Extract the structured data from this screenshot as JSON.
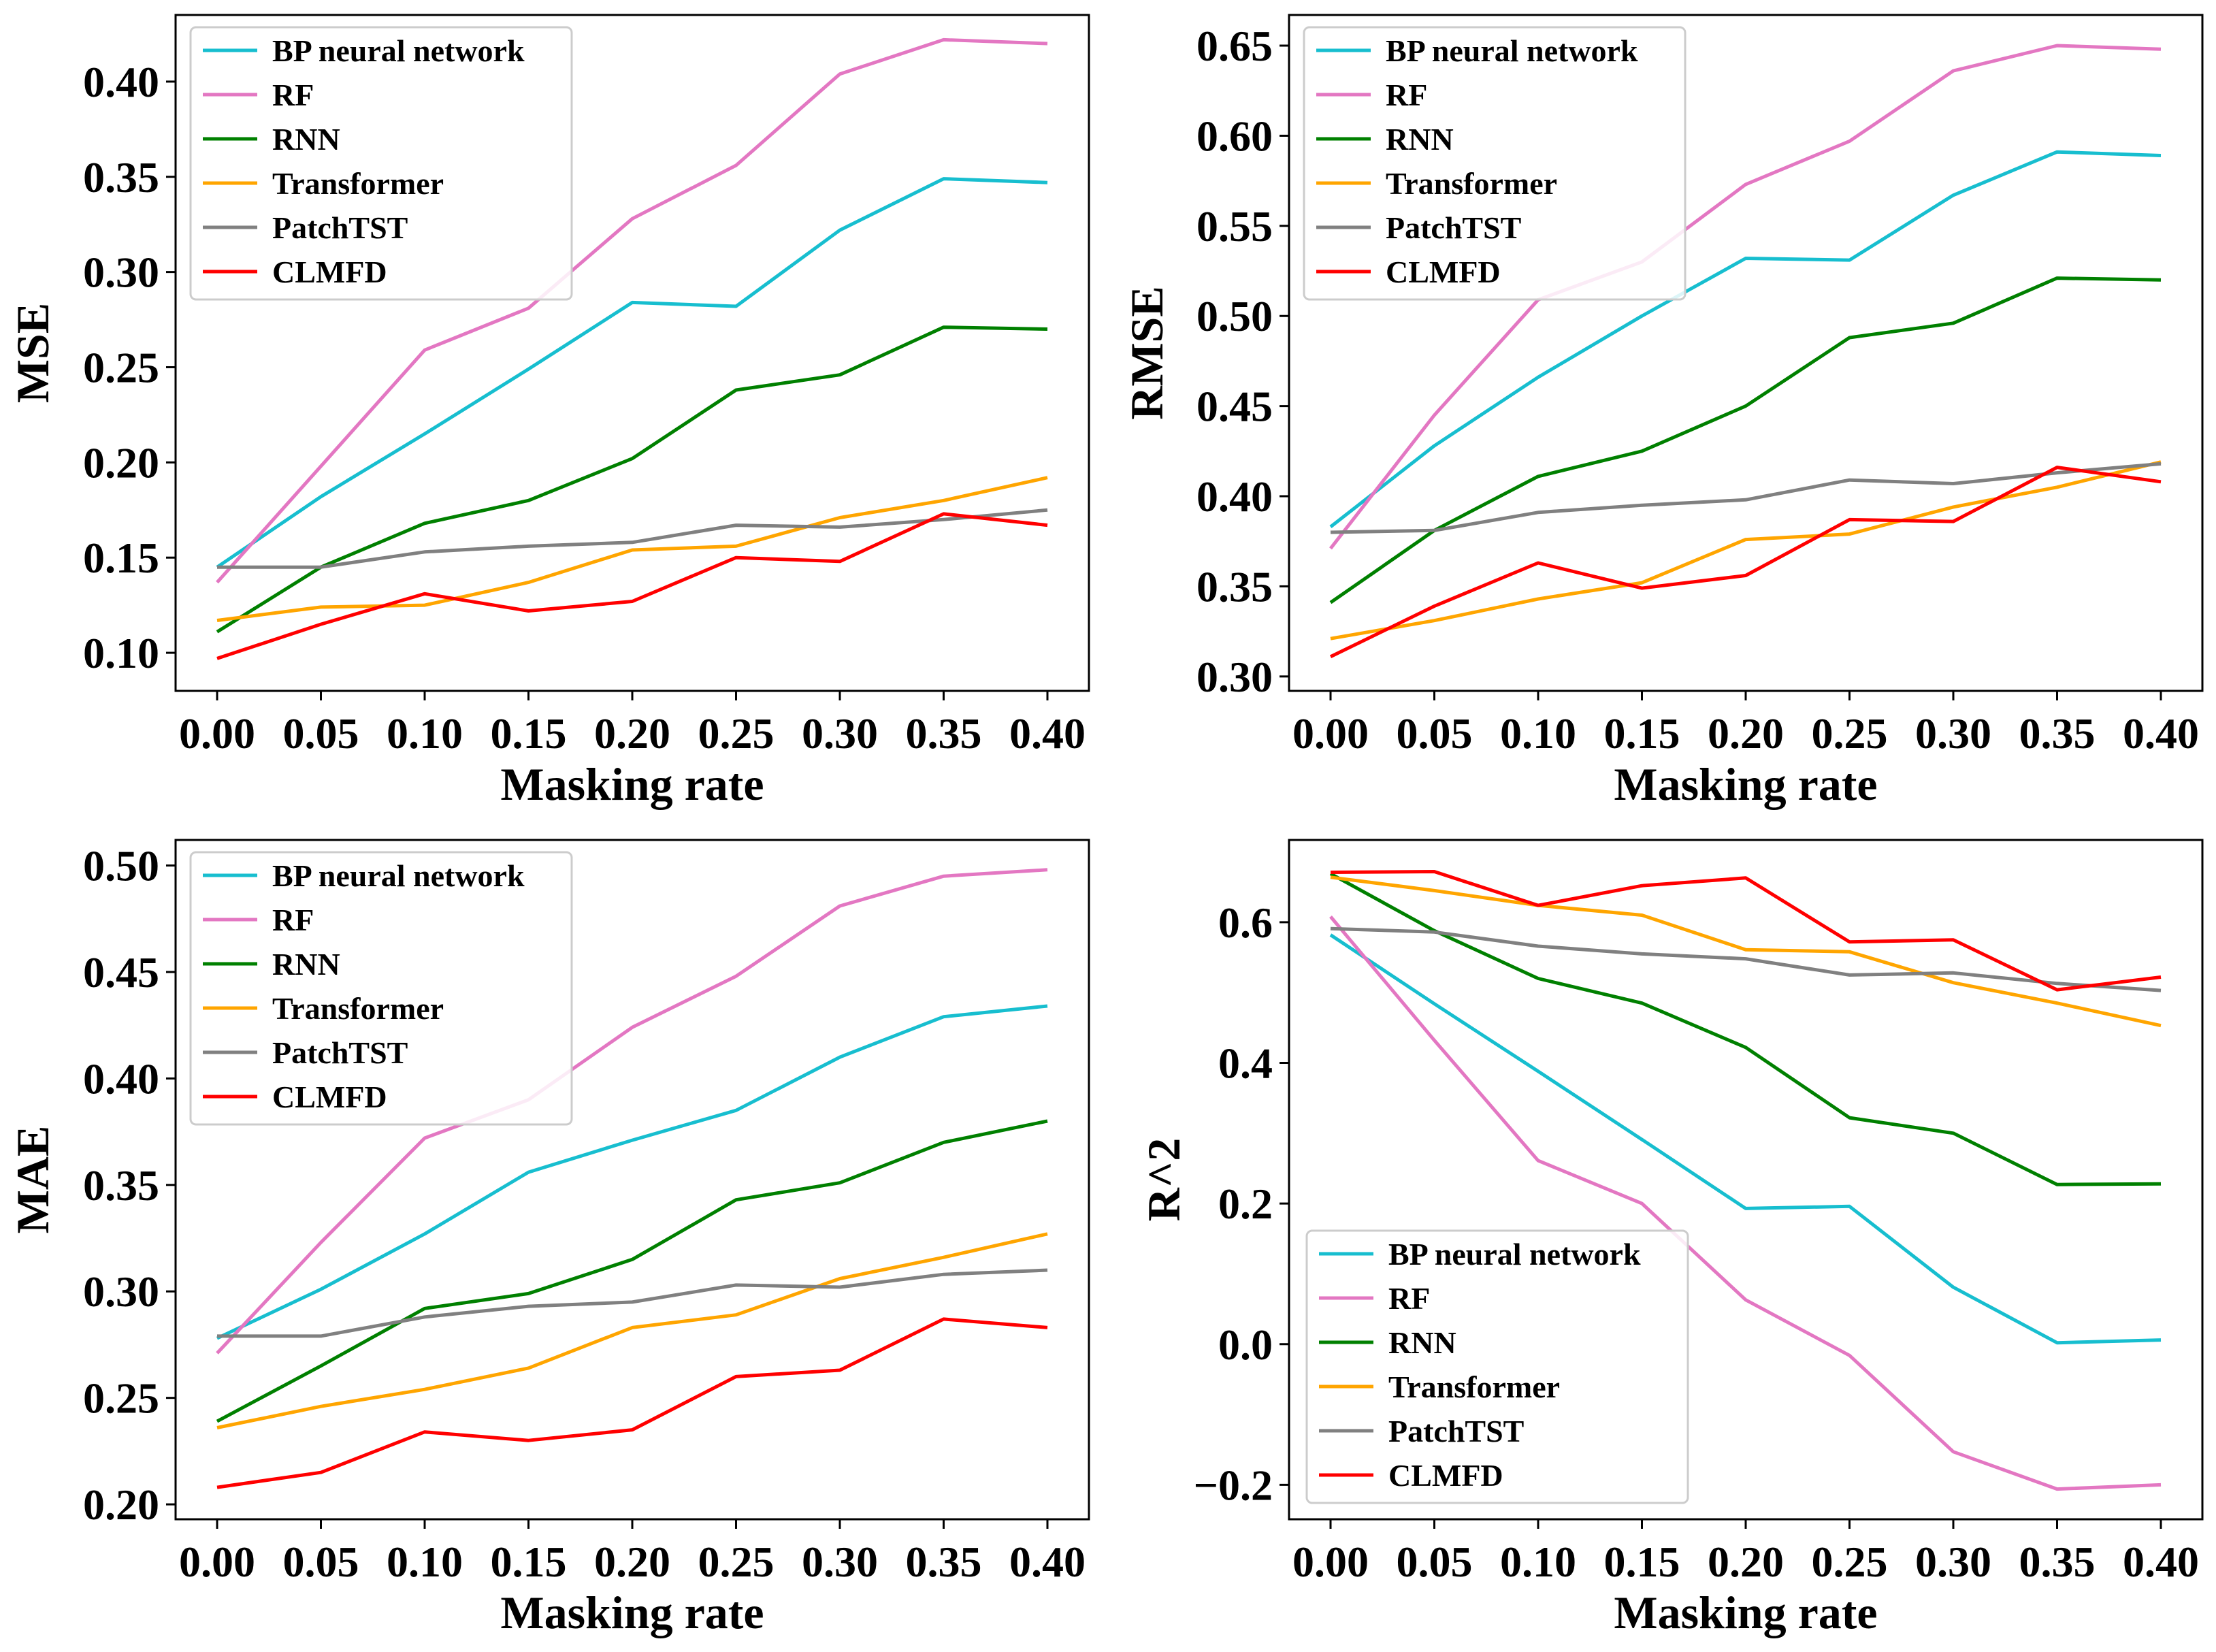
{
  "chart_data": [
    {
      "type": "line",
      "xlabel": "Masking rate",
      "ylabel": "MSE",
      "x": [
        0.0,
        0.05,
        0.1,
        0.15,
        0.2,
        0.25,
        0.3,
        0.35,
        0.4
      ],
      "x_ticks": [
        "0.00",
        "0.05",
        "0.10",
        "0.15",
        "0.20",
        "0.25",
        "0.30",
        "0.35",
        "0.40"
      ],
      "xlim": [
        -0.02,
        0.42
      ],
      "ylim": [
        0.08,
        0.435
      ],
      "y_ticks": [
        "0.10",
        "0.15",
        "0.20",
        "0.25",
        "0.30",
        "0.35",
        "0.40"
      ],
      "legend_position": "top-left",
      "series": [
        {
          "name": "BP neural network",
          "color": "#17becf",
          "values": [
            0.145,
            0.182,
            0.215,
            0.249,
            0.284,
            0.282,
            0.322,
            0.349,
            0.347
          ]
        },
        {
          "name": "RF",
          "color": "#e377c2",
          "values": [
            0.137,
            0.198,
            0.259,
            0.281,
            0.328,
            0.356,
            0.404,
            0.422,
            0.42
          ]
        },
        {
          "name": "RNN",
          "color": "#008000",
          "values": [
            0.111,
            0.145,
            0.168,
            0.18,
            0.202,
            0.238,
            0.246,
            0.271,
            0.27
          ]
        },
        {
          "name": "Transformer",
          "color": "#ffa500",
          "values": [
            0.117,
            0.124,
            0.125,
            0.137,
            0.154,
            0.156,
            0.171,
            0.18,
            0.192
          ]
        },
        {
          "name": "PatchTST",
          "color": "#808080",
          "values": [
            0.145,
            0.145,
            0.153,
            0.156,
            0.158,
            0.167,
            0.166,
            0.17,
            0.175
          ]
        },
        {
          "name": "CLMFD",
          "color": "#ff0000",
          "values": [
            0.097,
            0.115,
            0.131,
            0.122,
            0.127,
            0.15,
            0.148,
            0.173,
            0.167
          ]
        }
      ]
    },
    {
      "type": "line",
      "xlabel": "Masking rate",
      "ylabel": "RMSE",
      "x": [
        0.0,
        0.05,
        0.1,
        0.15,
        0.2,
        0.25,
        0.3,
        0.35,
        0.4
      ],
      "x_ticks": [
        "0.00",
        "0.05",
        "0.10",
        "0.15",
        "0.20",
        "0.25",
        "0.30",
        "0.35",
        "0.40"
      ],
      "xlim": [
        -0.02,
        0.42
      ],
      "ylim": [
        0.292,
        0.667
      ],
      "y_ticks": [
        "0.30",
        "0.35",
        "0.40",
        "0.45",
        "0.50",
        "0.55",
        "0.60",
        "0.65"
      ],
      "legend_position": "top-left",
      "series": [
        {
          "name": "BP neural network",
          "color": "#17becf",
          "values": [
            0.383,
            0.428,
            0.466,
            0.5,
            0.532,
            0.531,
            0.567,
            0.591,
            0.589
          ]
        },
        {
          "name": "RF",
          "color": "#e377c2",
          "values": [
            0.371,
            0.445,
            0.509,
            0.53,
            0.573,
            0.597,
            0.636,
            0.65,
            0.648
          ]
        },
        {
          "name": "RNN",
          "color": "#008000",
          "values": [
            0.341,
            0.381,
            0.411,
            0.425,
            0.45,
            0.488,
            0.496,
            0.521,
            0.52
          ]
        },
        {
          "name": "Transformer",
          "color": "#ffa500",
          "values": [
            0.321,
            0.331,
            0.343,
            0.352,
            0.376,
            0.379,
            0.394,
            0.405,
            0.419
          ]
        },
        {
          "name": "PatchTST",
          "color": "#808080",
          "values": [
            0.38,
            0.381,
            0.391,
            0.395,
            0.398,
            0.409,
            0.407,
            0.413,
            0.418
          ]
        },
        {
          "name": "CLMFD",
          "color": "#ff0000",
          "values": [
            0.311,
            0.339,
            0.363,
            0.349,
            0.356,
            0.387,
            0.386,
            0.416,
            0.408
          ]
        }
      ]
    },
    {
      "type": "line",
      "xlabel": "Masking rate",
      "ylabel": "MAE",
      "x": [
        0.0,
        0.05,
        0.1,
        0.15,
        0.2,
        0.25,
        0.3,
        0.35,
        0.4
      ],
      "x_ticks": [
        "0.00",
        "0.05",
        "0.10",
        "0.15",
        "0.20",
        "0.25",
        "0.30",
        "0.35",
        "0.40"
      ],
      "xlim": [
        -0.02,
        0.42
      ],
      "ylim": [
        0.193,
        0.512
      ],
      "y_ticks": [
        "0.20",
        "0.25",
        "0.30",
        "0.35",
        "0.40",
        "0.45",
        "0.50"
      ],
      "legend_position": "top-left",
      "series": [
        {
          "name": "BP neural network",
          "color": "#17becf",
          "values": [
            0.278,
            0.301,
            0.327,
            0.356,
            0.371,
            0.385,
            0.41,
            0.429,
            0.434
          ]
        },
        {
          "name": "RF",
          "color": "#e377c2",
          "values": [
            0.271,
            0.323,
            0.372,
            0.39,
            0.424,
            0.448,
            0.481,
            0.495,
            0.498
          ]
        },
        {
          "name": "RNN",
          "color": "#008000",
          "values": [
            0.239,
            0.265,
            0.292,
            0.299,
            0.315,
            0.343,
            0.351,
            0.37,
            0.38
          ]
        },
        {
          "name": "Transformer",
          "color": "#ffa500",
          "values": [
            0.236,
            0.246,
            0.254,
            0.264,
            0.283,
            0.289,
            0.306,
            0.316,
            0.327
          ]
        },
        {
          "name": "PatchTST",
          "color": "#808080",
          "values": [
            0.279,
            0.279,
            0.288,
            0.293,
            0.295,
            0.303,
            0.302,
            0.308,
            0.31
          ]
        },
        {
          "name": "CLMFD",
          "color": "#ff0000",
          "values": [
            0.208,
            0.215,
            0.234,
            0.23,
            0.235,
            0.26,
            0.263,
            0.287,
            0.283
          ]
        }
      ]
    },
    {
      "type": "line",
      "xlabel": "Masking rate",
      "ylabel": "R^2",
      "x": [
        0.0,
        0.05,
        0.1,
        0.15,
        0.2,
        0.25,
        0.3,
        0.35,
        0.4
      ],
      "x_ticks": [
        "0.00",
        "0.05",
        "0.10",
        "0.15",
        "0.20",
        "0.25",
        "0.30",
        "0.35",
        "0.40"
      ],
      "xlim": [
        -0.02,
        0.42
      ],
      "ylim": [
        -0.249,
        0.717
      ],
      "y_ticks": [
        "−0.2",
        "0.0",
        "0.2",
        "0.4",
        "0.6"
      ],
      "y_tick_values": [
        -0.2,
        0.0,
        0.2,
        0.4,
        0.6
      ],
      "legend_position": "bottom-left",
      "series": [
        {
          "name": "BP neural network",
          "color": "#17becf",
          "values": [
            0.582,
            0.484,
            0.388,
            0.291,
            0.193,
            0.196,
            0.081,
            0.002,
            0.006
          ]
        },
        {
          "name": "RF",
          "color": "#e377c2",
          "values": [
            0.608,
            0.432,
            0.261,
            0.2,
            0.063,
            -0.016,
            -0.153,
            -0.206,
            -0.2
          ]
        },
        {
          "name": "RNN",
          "color": "#008000",
          "values": [
            0.669,
            0.588,
            0.52,
            0.485,
            0.422,
            0.322,
            0.3,
            0.227,
            0.228
          ]
        },
        {
          "name": "Transformer",
          "color": "#ffa500",
          "values": [
            0.664,
            0.645,
            0.624,
            0.61,
            0.561,
            0.558,
            0.514,
            0.485,
            0.453
          ]
        },
        {
          "name": "PatchTST",
          "color": "#808080",
          "values": [
            0.591,
            0.586,
            0.566,
            0.555,
            0.548,
            0.525,
            0.528,
            0.513,
            0.503
          ]
        },
        {
          "name": "CLMFD",
          "color": "#ff0000",
          "values": [
            0.671,
            0.672,
            0.624,
            0.652,
            0.663,
            0.572,
            0.575,
            0.504,
            0.522
          ]
        }
      ]
    }
  ]
}
